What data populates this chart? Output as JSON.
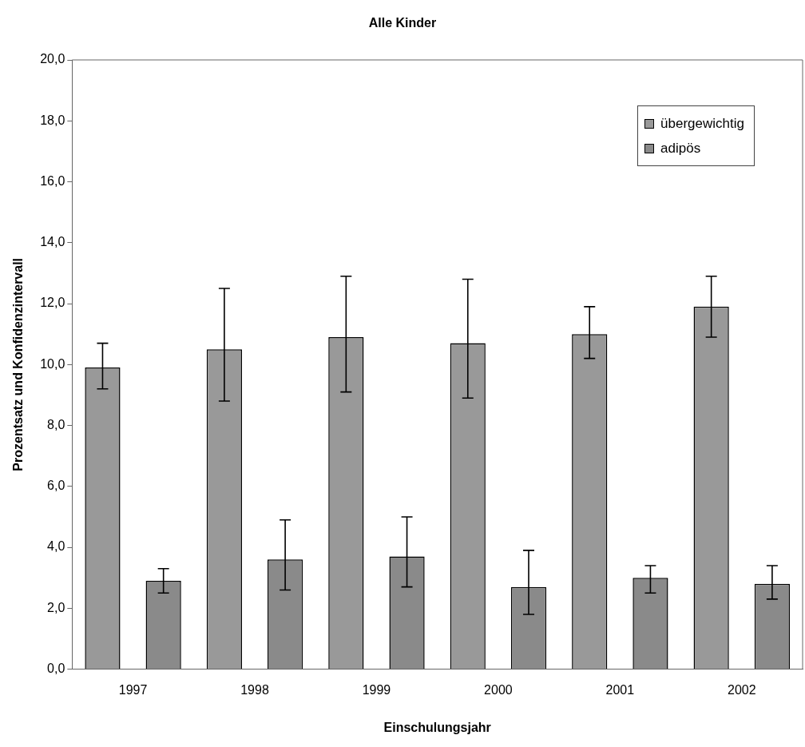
{
  "chart_data": {
    "type": "bar",
    "title": "Alle Kinder",
    "xlabel": "Einschulungsjahr",
    "ylabel": "Prozentsatz und Konfidenzintervall",
    "categories": [
      "1997",
      "1998",
      "1999",
      "2000",
      "2001",
      "2002"
    ],
    "series": [
      {
        "name": "übergewichtig",
        "color": "#999999",
        "values": [
          9.9,
          10.5,
          10.9,
          10.7,
          11.0,
          11.9
        ],
        "errors": [
          [
            9.2,
            10.7
          ],
          [
            8.8,
            12.5
          ],
          [
            9.1,
            12.9
          ],
          [
            8.9,
            12.8
          ],
          [
            10.2,
            11.9
          ],
          [
            10.9,
            12.9
          ]
        ]
      },
      {
        "name": "adipös",
        "color": "#8a8a8a",
        "values": [
          2.9,
          3.6,
          3.7,
          2.7,
          3.0,
          2.8
        ],
        "errors": [
          [
            2.5,
            3.3
          ],
          [
            2.6,
            4.9
          ],
          [
            2.7,
            5.0
          ],
          [
            1.8,
            3.9
          ],
          [
            2.5,
            3.4
          ],
          [
            2.3,
            3.4
          ]
        ]
      }
    ],
    "ylim": [
      0,
      20
    ],
    "yticks": [
      {
        "value": 0,
        "label": "0,0"
      },
      {
        "value": 2,
        "label": "2,0"
      },
      {
        "value": 4,
        "label": "4,0"
      },
      {
        "value": 6,
        "label": "6,0"
      },
      {
        "value": 8,
        "label": "8,0"
      },
      {
        "value": 10,
        "label": "10,0"
      },
      {
        "value": 12,
        "label": "12,0"
      },
      {
        "value": 14,
        "label": "14,0"
      },
      {
        "value": 16,
        "label": "16,0"
      },
      {
        "value": 18,
        "label": "18,0"
      },
      {
        "value": 20,
        "label": "20,0"
      }
    ],
    "grid": false,
    "legend": "top right"
  }
}
